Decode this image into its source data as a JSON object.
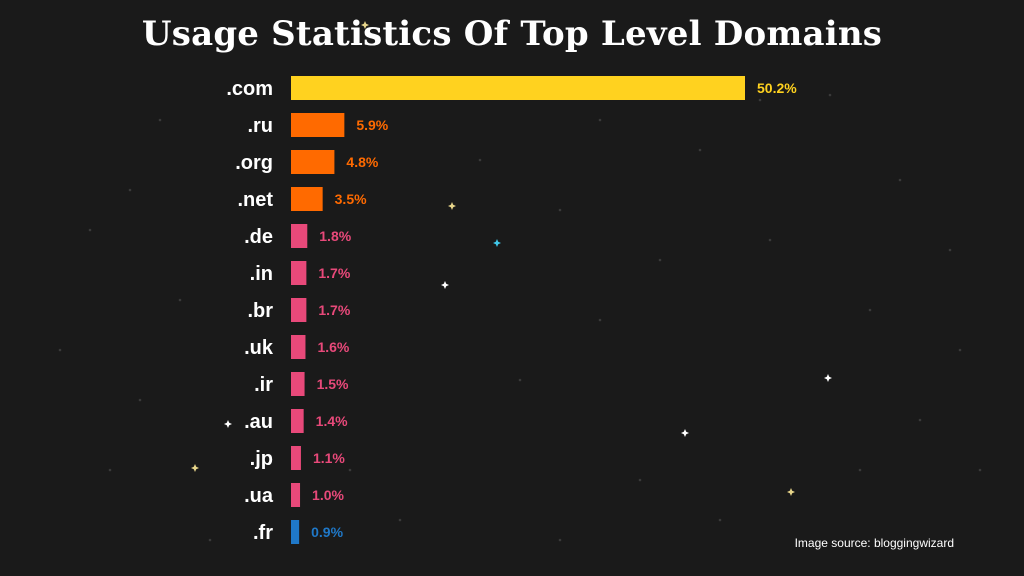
{
  "chart_data": {
    "type": "bar",
    "orientation": "horizontal",
    "title": "Usage Statistics Of Top Level Domains",
    "categories": [
      ".com",
      ".ru",
      ".org",
      ".net",
      ".de",
      ".in",
      ".br",
      ".uk",
      ".ir",
      ".au",
      ".jp",
      ".ua",
      ".fr"
    ],
    "values": [
      50.2,
      5.9,
      4.8,
      3.5,
      1.8,
      1.7,
      1.7,
      1.6,
      1.5,
      1.4,
      1.1,
      1.0,
      0.9
    ],
    "value_labels": [
      "50.2%",
      "5.9%",
      "4.8%",
      "3.5%",
      "1.8%",
      "1.7%",
      "1.7%",
      "1.6%",
      "1.5%",
      "1.4%",
      "1.1%",
      "1.0%",
      "0.9%"
    ],
    "bar_colors": [
      "#ffd21f",
      "#ff6a00",
      "#ff6a00",
      "#ff6a00",
      "#e8497a",
      "#e8497a",
      "#e8497a",
      "#e8497a",
      "#e8497a",
      "#e8497a",
      "#e8497a",
      "#e8497a",
      "#1f78c8"
    ],
    "grid": false,
    "legend": "none"
  },
  "colors": {
    "background": "#1a1a1a",
    "title": "#ffffff",
    "category_label": "#ffffff"
  },
  "footer": {
    "source_text": "Image source: bloggingwizard"
  }
}
